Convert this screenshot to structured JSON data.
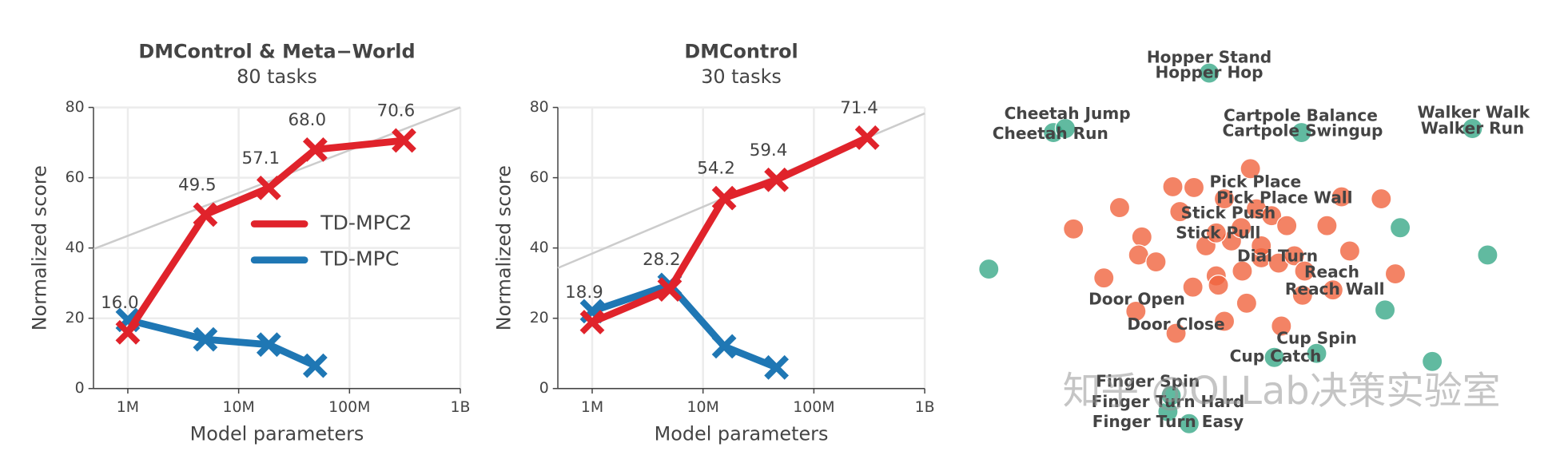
{
  "chart_data": [
    {
      "type": "line",
      "title": "DMControl & Meta−World",
      "subtitle": "80 tasks",
      "xlabel": "Model parameters",
      "ylabel": "Normalized score",
      "xscale": "log",
      "xlim": [
        490000,
        1000000000
      ],
      "ylim": [
        0,
        80
      ],
      "xticks": [
        {
          "value": 1000000,
          "label": "1M"
        },
        {
          "value": 10000000,
          "label": "10M"
        },
        {
          "value": 100000000,
          "label": "100M"
        },
        {
          "value": 1000000000,
          "label": "1B"
        }
      ],
      "yticks": [
        0,
        20,
        40,
        60,
        80
      ],
      "grid": true,
      "legend": "center right",
      "trend": {
        "x": [
          490000,
          1000000000
        ],
        "values": [
          39.7,
          80
        ],
        "color": "#cccccc"
      },
      "series": [
        {
          "name": "TD-MPC2",
          "color": "#e0232b",
          "x": [
            1000000,
            5000000,
            18700000,
            49000000,
            310000000
          ],
          "values": [
            16.0,
            49.5,
            57.1,
            68.0,
            70.6
          ],
          "value_labels": [
            "16.0",
            "49.5",
            "57.1",
            "68.0",
            "70.6"
          ]
        },
        {
          "name": "TD-MPC",
          "color": "#1f77b4",
          "x": [
            1000000,
            5000000,
            18700000,
            49000000
          ],
          "values": [
            19.5,
            14,
            12.5,
            6.5
          ]
        }
      ]
    },
    {
      "type": "line",
      "title": "DMControl",
      "subtitle": "30 tasks",
      "xlabel": "Model parameters",
      "ylabel": "Normalized score",
      "xscale": "log",
      "xlim": [
        490000,
        1000000000
      ],
      "ylim": [
        0,
        80
      ],
      "xticks": [
        {
          "value": 1000000,
          "label": "1M"
        },
        {
          "value": 10000000,
          "label": "10M"
        },
        {
          "value": 100000000,
          "label": "100M"
        },
        {
          "value": 1000000000,
          "label": "1B"
        }
      ],
      "yticks": [
        0,
        20,
        40,
        60,
        80
      ],
      "grid": true,
      "trend": {
        "x": [
          490000,
          1000000000
        ],
        "values": [
          34.3,
          78.3
        ],
        "color": "#cccccc"
      },
      "series": [
        {
          "name": "TD-MPC2",
          "color": "#e0232b",
          "x": [
            1000000,
            5000000,
            15500000,
            46000000,
            303000000
          ],
          "values": [
            18.9,
            28.2,
            54.2,
            59.4,
            71.4
          ],
          "value_labels": [
            "18.9",
            "28.2",
            "54.2",
            "59.4",
            "71.4"
          ]
        },
        {
          "name": "TD-MPC",
          "color": "#1f77b4",
          "x": [
            1000000,
            5000000,
            15500000,
            46000000
          ],
          "values": [
            22,
            29.5,
            12,
            6
          ]
        }
      ]
    },
    {
      "type": "scatter",
      "xlim": [
        0,
        100
      ],
      "ylim": [
        0,
        100
      ],
      "series": [
        {
          "color": "#3aa988",
          "x": [
            4.4,
            45,
            16.3,
            18.5,
            62,
            93.5,
            80.2,
            96.3,
            77.4,
            86.1,
            64.8,
            57,
            37.4,
            41.3,
            38
          ],
          "values": [
            43,
            91.8,
            77,
            78,
            77,
            78,
            53.3,
            46.5,
            32.8,
            20,
            22,
            21,
            7.5,
            4.5,
            11.5
          ]
        },
        {
          "color": "#f0643f",
          "x": [
            52.6,
            38.3,
            42.2,
            28.5,
            20,
            32.6,
            39.6,
            47.8,
            53.7,
            56.5,
            59.3,
            66.7,
            69.4,
            76.7,
            70.9,
            79.3,
            25.6,
            32,
            35.2,
            42,
            46.3,
            46.7,
            51.1,
            54.6,
            57.8,
            60.7,
            62.6,
            67.8,
            62.2,
            51.9,
            47.8,
            38.9,
            31.5,
            58.3,
            44.4,
            49.1,
            46.3,
            50.9,
            54.6
          ],
          "values": [
            68,
            63.5,
            63.3,
            58.3,
            53,
            51,
            57.3,
            60.5,
            58,
            56.3,
            53.8,
            53.8,
            61,
            60.5,
            47.5,
            41.8,
            40.8,
            46.5,
            44.8,
            38.5,
            41.3,
            39,
            42.5,
            45.8,
            44.5,
            46.3,
            42.5,
            37.8,
            36.5,
            34.5,
            30,
            27,
            32.5,
            28.8,
            48.8,
            50,
            52,
            53.3,
            48.8
          ]
        }
      ],
      "annotations": [
        "Hopper Stand",
        "Hopper Hop",
        "Cheetah Jump",
        "Cheetah Run",
        "Cartpole Balance",
        "Cartpole Swingup",
        "Walker Walk",
        "Walker Run",
        "Pick Place",
        "Pick Place Wall",
        "Stick Push",
        "Stick Pull",
        "Dial Turn",
        "Reach",
        "Reach Wall",
        "Door Open",
        "Door Close",
        "Cup Spin",
        "Cup Catch",
        "Finger Spin",
        "Finger Turn Hard",
        "Finger Turn Easy"
      ],
      "watermark": "知乎 @OLLab决策实验室"
    }
  ]
}
